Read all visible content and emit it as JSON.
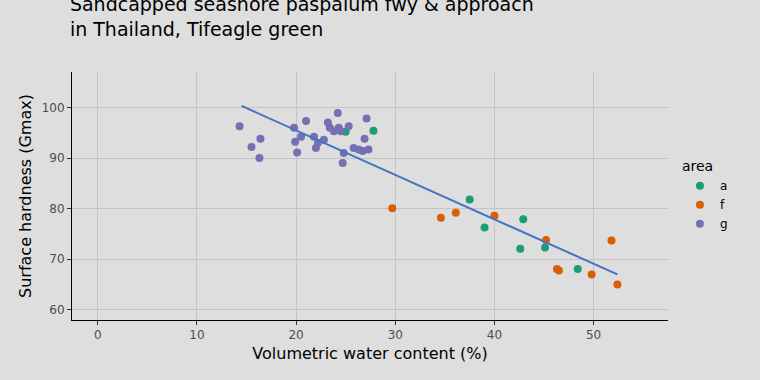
{
  "chart_data": {
    "type": "scatter",
    "title": "Sandcapped seashore paspalum fwy & approach\nin Thailand, Tifeagle green",
    "x_label": "Volumetric water content (%)",
    "y_label": "Surface hardness (Gmax)",
    "legend_title": "area",
    "legend": "right",
    "grid": true,
    "xlim": [
      -2.6,
      57.5
    ],
    "xticks": [
      0,
      10,
      20,
      30,
      40,
      50
    ],
    "ylim": [
      58,
      107
    ],
    "yticks": [
      60,
      70,
      80,
      90,
      100
    ],
    "series": [
      {
        "name": "a",
        "color": "#1b9e77",
        "marker": "circle",
        "x": [
          25.0,
          27.8,
          37.5,
          39.0,
          42.6,
          42.9,
          45.1,
          48.4
        ],
        "values": [
          95.2,
          95.4,
          81.8,
          76.3,
          72.1,
          77.9,
          72.3,
          68.1
        ]
      },
      {
        "name": "f",
        "color": "#d95f02",
        "marker": "circle",
        "x": [
          29.7,
          34.6,
          36.1,
          40.0,
          45.2,
          46.3,
          46.5,
          49.8,
          51.8,
          52.4
        ],
        "values": [
          80.1,
          78.2,
          79.2,
          78.6,
          73.8,
          68.1,
          67.8,
          67.0,
          73.7,
          65.0
        ]
      },
      {
        "name": "g",
        "color": "#7570b3",
        "marker": "circle",
        "x": [
          14.3,
          15.5,
          16.3,
          16.4,
          19.8,
          19.9,
          20.1,
          20.5,
          21.0,
          21.8,
          22.0,
          22.2,
          22.8,
          23.2,
          23.4,
          23.8,
          24.2,
          24.3,
          24.5,
          24.7,
          24.8,
          25.3,
          25.8,
          26.3,
          26.7,
          26.9,
          27.1,
          27.3
        ],
        "values": [
          96.3,
          92.2,
          90.0,
          93.8,
          96.0,
          93.2,
          91.1,
          94.2,
          97.3,
          94.2,
          92.0,
          93.0,
          93.6,
          97.0,
          96.0,
          95.3,
          98.9,
          96.0,
          95.3,
          89.0,
          91.0,
          96.3,
          92.0,
          91.7,
          91.4,
          93.8,
          97.8,
          91.7
        ]
      },
      {
        "type": "line",
        "color": "#4472c4",
        "line_style": "solid",
        "x": [
          14.5,
          52.4
        ],
        "values": [
          100.3,
          67.0
        ]
      }
    ]
  }
}
